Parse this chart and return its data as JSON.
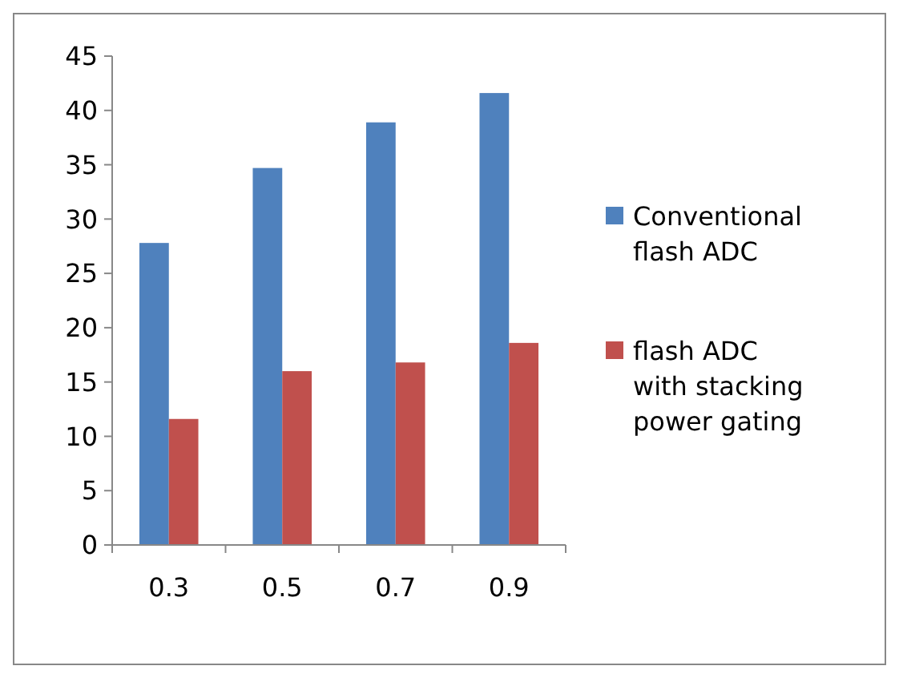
{
  "chart_data": {
    "type": "bar",
    "categories": [
      "0.3",
      "0.5",
      "0.7",
      "0.9"
    ],
    "series": [
      {
        "name": "Conventional flash ADC",
        "color": "#4f81bd",
        "values": [
          27.8,
          34.7,
          38.9,
          41.6
        ]
      },
      {
        "name": "flash ADC with stacking power gating",
        "color": "#c0504d",
        "values": [
          11.6,
          16,
          16.8,
          18.6
        ]
      }
    ],
    "ylim": [
      0,
      45
    ],
    "yticks": [
      0,
      5,
      10,
      15,
      20,
      25,
      30,
      35,
      40,
      45
    ],
    "grid": false,
    "legend": "right"
  }
}
